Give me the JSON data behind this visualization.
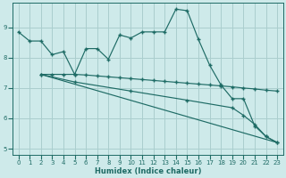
{
  "xlabel": "Humidex (Indice chaleur)",
  "background_color": "#ceeaea",
  "grid_color": "#aacece",
  "line_color": "#1e6b65",
  "xlim": [
    -0.5,
    23.5
  ],
  "ylim": [
    4.8,
    9.8
  ],
  "yticks": [
    5,
    6,
    7,
    8,
    9
  ],
  "xticks": [
    0,
    1,
    2,
    3,
    4,
    5,
    6,
    7,
    8,
    9,
    10,
    11,
    12,
    13,
    14,
    15,
    16,
    17,
    18,
    19,
    20,
    21,
    22,
    23
  ],
  "series1_x": [
    0,
    1,
    2,
    3,
    4,
    5,
    6,
    7,
    8,
    9,
    10,
    11,
    12,
    13,
    14,
    15,
    16,
    17,
    18,
    19,
    20,
    21,
    22,
    23
  ],
  "series1_y": [
    8.85,
    8.55,
    8.55,
    8.1,
    8.2,
    7.45,
    8.3,
    8.3,
    7.95,
    8.75,
    8.65,
    8.85,
    8.85,
    8.85,
    9.6,
    9.55,
    8.6,
    7.75,
    7.1,
    6.65,
    6.65,
    5.75,
    5.4,
    5.2
  ],
  "series2_x": [
    2,
    3,
    4,
    5,
    6,
    7,
    8,
    9,
    10,
    11,
    12,
    13,
    14,
    15,
    16,
    17,
    18,
    19,
    20,
    21,
    22,
    23
  ],
  "series2_y": [
    7.45,
    7.45,
    7.45,
    7.45,
    7.43,
    7.4,
    7.37,
    7.34,
    7.31,
    7.28,
    7.25,
    7.22,
    7.19,
    7.16,
    7.13,
    7.1,
    7.07,
    7.04,
    7.0,
    6.97,
    6.93,
    6.9
  ],
  "series3_x": [
    2,
    5,
    10,
    15,
    19,
    20,
    21,
    22,
    23
  ],
  "series3_y": [
    7.45,
    7.2,
    6.9,
    6.6,
    6.35,
    6.1,
    5.8,
    5.4,
    5.2
  ],
  "series4_x": [
    2,
    23
  ],
  "series4_y": [
    7.45,
    5.2
  ]
}
